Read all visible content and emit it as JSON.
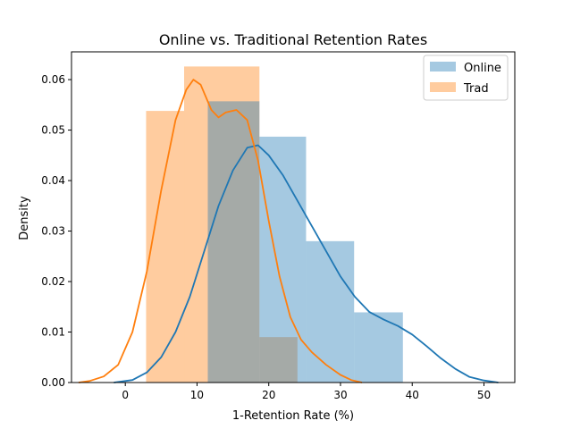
{
  "chart_data": {
    "type": "histogram-kde",
    "title": "Online vs. Traditional Retention Rates",
    "xlabel": "1-Retention Rate (%)",
    "ylabel": "Density",
    "xlim": [
      -7.5,
      54.3
    ],
    "ylim": [
      0,
      0.0655
    ],
    "x_ticks": [
      0,
      10,
      20,
      30,
      40,
      50
    ],
    "y_ticks": [
      0.0,
      0.01,
      0.02,
      0.03,
      0.04,
      0.05,
      0.06
    ],
    "x_tick_labels": [
      "0",
      "10",
      "20",
      "30",
      "40",
      "50"
    ],
    "y_tick_labels": [
      "0.00",
      "0.01",
      "0.02",
      "0.03",
      "0.04",
      "0.05",
      "0.06"
    ],
    "legend_position": "top-right",
    "series": [
      {
        "name": "Online",
        "color": "#1f77b4",
        "bar_color": "#a4c7e2",
        "bins": [
          {
            "x0": 11.5,
            "x1": 18.7,
            "density": 0.0557
          },
          {
            "x0": 18.7,
            "x1": 25.2,
            "density": 0.0487
          },
          {
            "x0": 25.2,
            "x1": 31.9,
            "density": 0.028
          },
          {
            "x0": 31.9,
            "x1": 38.7,
            "density": 0.0139
          }
        ],
        "kde": [
          [
            -1.6,
            0.0
          ],
          [
            1.0,
            0.0005
          ],
          [
            3.0,
            0.002
          ],
          [
            5.0,
            0.005
          ],
          [
            7.0,
            0.01
          ],
          [
            9.0,
            0.017
          ],
          [
            11.0,
            0.026
          ],
          [
            13.0,
            0.035
          ],
          [
            15.0,
            0.042
          ],
          [
            17.0,
            0.0465
          ],
          [
            18.5,
            0.047
          ],
          [
            20.0,
            0.045
          ],
          [
            22.0,
            0.041
          ],
          [
            24.0,
            0.036
          ],
          [
            26.0,
            0.031
          ],
          [
            28.0,
            0.026
          ],
          [
            30.0,
            0.021
          ],
          [
            32.0,
            0.017
          ],
          [
            34.0,
            0.014
          ],
          [
            36.0,
            0.0125
          ],
          [
            38.0,
            0.0112
          ],
          [
            40.0,
            0.0095
          ],
          [
            42.0,
            0.0072
          ],
          [
            44.0,
            0.0048
          ],
          [
            46.0,
            0.0027
          ],
          [
            48.0,
            0.0011
          ],
          [
            50.0,
            0.0004
          ],
          [
            52.0,
            0.0
          ]
        ]
      },
      {
        "name": "Trad",
        "color": "#ff7f0e",
        "bar_color": "#ffc795",
        "bins": [
          {
            "x0": 2.9,
            "x1": 8.2,
            "density": 0.0538
          },
          {
            "x0": 8.2,
            "x1": 18.7,
            "density": 0.0626
          },
          {
            "x0": 18.7,
            "x1": 24.0,
            "density": 0.009
          }
        ],
        "kde": [
          [
            -6.5,
            0.0
          ],
          [
            -5.0,
            0.0003
          ],
          [
            -3.0,
            0.0012
          ],
          [
            -1.0,
            0.0035
          ],
          [
            1.0,
            0.01
          ],
          [
            3.0,
            0.022
          ],
          [
            5.0,
            0.038
          ],
          [
            7.0,
            0.052
          ],
          [
            8.5,
            0.058
          ],
          [
            9.5,
            0.06
          ],
          [
            10.5,
            0.059
          ],
          [
            12.0,
            0.054
          ],
          [
            13.0,
            0.0525
          ],
          [
            14.0,
            0.0535
          ],
          [
            15.5,
            0.054
          ],
          [
            17.0,
            0.052
          ],
          [
            18.5,
            0.044
          ],
          [
            20.0,
            0.032
          ],
          [
            21.5,
            0.021
          ],
          [
            23.0,
            0.013
          ],
          [
            24.5,
            0.0085
          ],
          [
            26.0,
            0.006
          ],
          [
            28.0,
            0.0035
          ],
          [
            30.0,
            0.0015
          ],
          [
            31.5,
            0.0005
          ],
          [
            33.0,
            0.0
          ]
        ]
      }
    ]
  }
}
